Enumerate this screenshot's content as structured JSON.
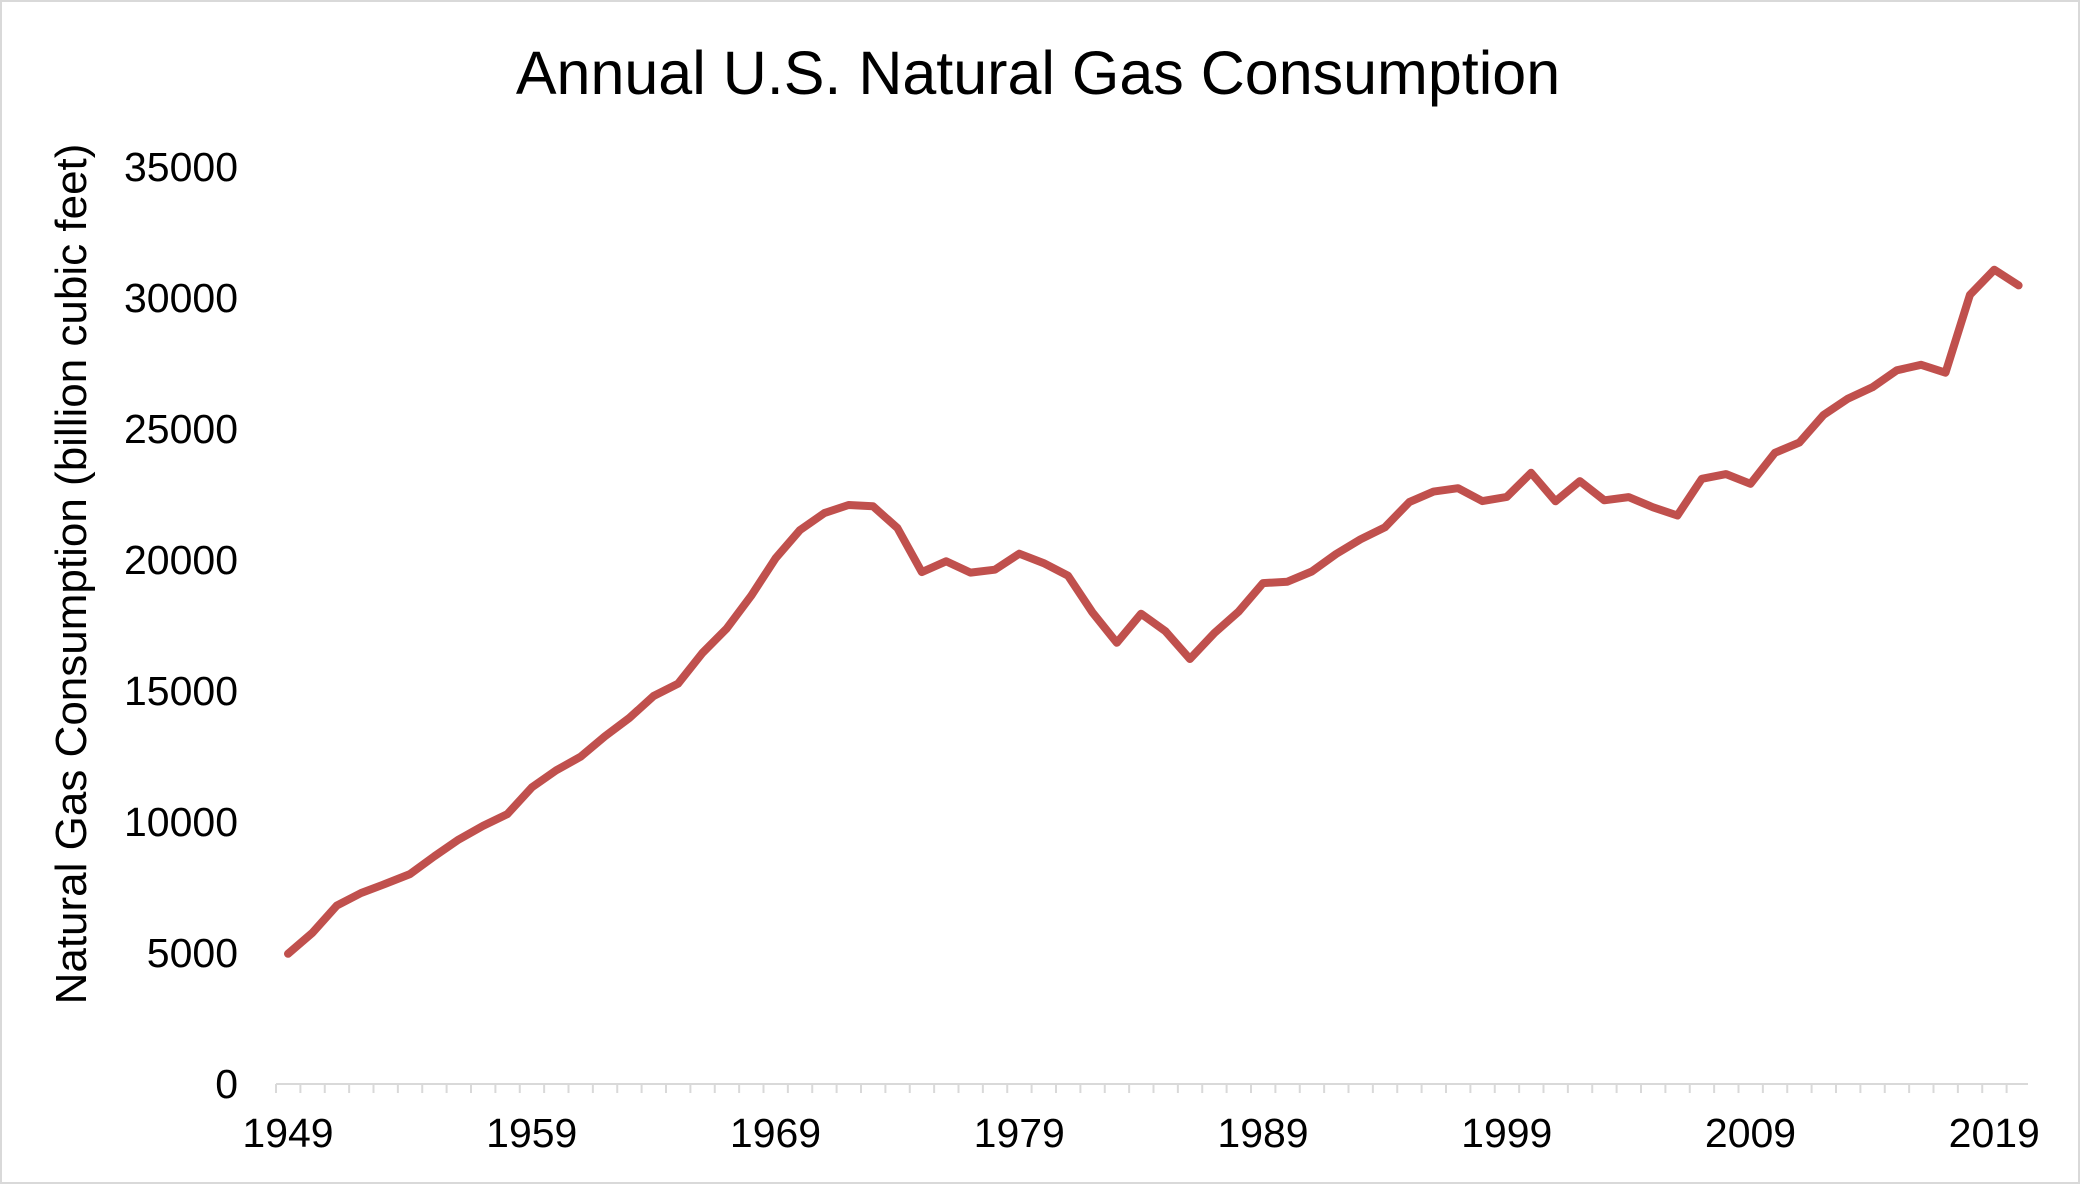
{
  "chart_data": {
    "type": "line",
    "title": "Annual U.S. Natural Gas Consumption",
    "xlabel": "",
    "ylabel": "Natural Gas Consumption (billion cubic feet)",
    "xlim": [
      1949,
      2020
    ],
    "ylim": [
      0,
      35000
    ],
    "yticks": [
      0,
      5000,
      10000,
      15000,
      20000,
      25000,
      30000,
      35000
    ],
    "xticks": [
      1949,
      1959,
      1969,
      1979,
      1989,
      1999,
      2009,
      2019
    ],
    "grid": false,
    "legend": "none",
    "line_color": "#c0504d",
    "series": [
      {
        "x": [
          1949,
          1950,
          1951,
          1952,
          1953,
          1954,
          1955,
          1956,
          1957,
          1958,
          1959,
          1960,
          1961,
          1962,
          1963,
          1964,
          1965,
          1966,
          1967,
          1968,
          1969,
          1970,
          1971,
          1972,
          1973,
          1974,
          1975,
          1976,
          1977,
          1978,
          1979,
          1980,
          1981,
          1982,
          1983,
          1984,
          1985,
          1986,
          1987,
          1988,
          1989,
          1990,
          1991,
          1992,
          1993,
          1994,
          1995,
          1996,
          1997,
          1998,
          1999,
          2000,
          2001,
          2002,
          2003,
          2004,
          2005,
          2006,
          2007,
          2008,
          2009,
          2010,
          2011,
          2012,
          2013,
          2014,
          2015,
          2016,
          2017,
          2018,
          2019,
          2020
        ],
        "values": [
          4970,
          5770,
          6810,
          7290,
          7640,
          8010,
          8690,
          9330,
          9850,
          10300,
          11320,
          11970,
          12490,
          13270,
          13970,
          14810,
          15280,
          16450,
          17390,
          18630,
          20060,
          21140,
          21790,
          22100,
          22050,
          21220,
          19540,
          19950,
          19520,
          19630,
          20240,
          19880,
          19400,
          18000,
          16840,
          17950,
          17280,
          16220,
          17210,
          18030,
          19120,
          19170,
          19560,
          20230,
          20790,
          21250,
          22210,
          22610,
          22740,
          22250,
          22410,
          23330,
          22240,
          23010,
          22280,
          22400,
          22010,
          21700,
          23100,
          23280,
          22910,
          24090,
          24480,
          25540,
          26160,
          26590,
          27240,
          27450,
          27150,
          30120,
          31080,
          30480
        ]
      }
    ]
  }
}
